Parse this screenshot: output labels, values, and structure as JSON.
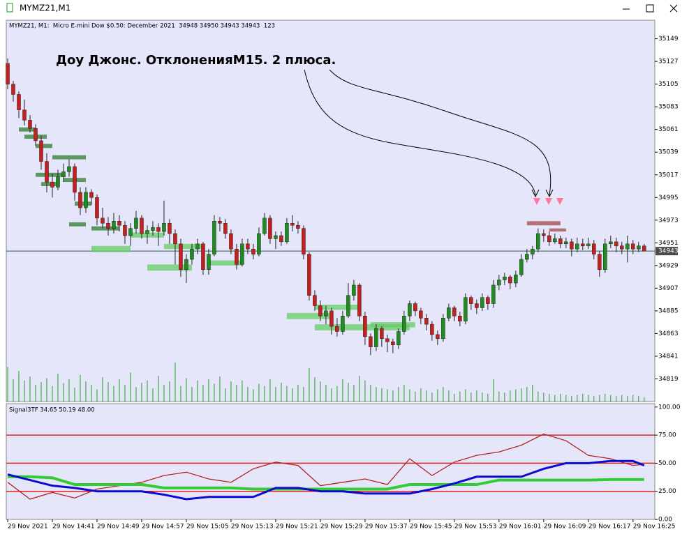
{
  "window_title": "MYMZ21,M1",
  "chart_data": [
    {
      "type": "candlestick",
      "header": "MYMZ21, M1:  Micro E-mini Dow $0.50: December 2021  34948 34950 34943 34943  123",
      "annotation": "Доу Джонс. ОтклоненияМ15. 2 плюса.",
      "up_color": "#1e8c1e",
      "down_color": "#c81e1e",
      "volume_color": "#1ea01e",
      "xlim": [
        -0.25,
        115.9
      ],
      "ylim": [
        34797,
        35167
      ],
      "yticks": [
        35149,
        35127,
        35105,
        35083,
        35061,
        35039,
        35017,
        34995,
        34973,
        34951,
        34929,
        34907,
        34885,
        34863,
        34841,
        34819
      ],
      "current_price": 34943,
      "candles": [
        [
          35125,
          35130,
          35100,
          35105
        ],
        [
          35105,
          35108,
          35088,
          35095
        ],
        [
          35095,
          35098,
          35072,
          35080
        ],
        [
          35080,
          35090,
          35065,
          35070
        ],
        [
          35070,
          35075,
          35058,
          35062
        ],
        [
          35062,
          35066,
          35045,
          35050
        ],
        [
          35050,
          35055,
          35022,
          35030
        ],
        [
          35030,
          35038,
          35000,
          35010
        ],
        [
          35010,
          35018,
          34995,
          35005
        ],
        [
          35005,
          35022,
          35002,
          35015
        ],
        [
          35015,
          35028,
          35010,
          35020
        ],
        [
          35020,
          35032,
          35015,
          35025
        ],
        [
          35025,
          35028,
          34992,
          35000
        ],
        [
          35000,
          35005,
          34978,
          34985
        ],
        [
          34985,
          35005,
          34980,
          35000
        ],
        [
          35000,
          35003,
          34988,
          34995
        ],
        [
          34995,
          34998,
          34968,
          34975
        ],
        [
          34975,
          34985,
          34965,
          34970
        ],
        [
          34970,
          34976,
          34958,
          34965
        ],
        [
          34965,
          34980,
          34960,
          34972
        ],
        [
          34972,
          34978,
          34962,
          34968
        ],
        [
          34968,
          34972,
          34950,
          34958
        ],
        [
          34958,
          34970,
          34948,
          34965
        ],
        [
          34965,
          34982,
          34960,
          34975
        ],
        [
          34975,
          34978,
          34955,
          34960
        ],
        [
          34960,
          34968,
          34950,
          34963
        ],
        [
          34963,
          34972,
          34958,
          34966
        ],
        [
          34966,
          34970,
          34948,
          34962
        ],
        [
          34962,
          34992,
          34958,
          34970
        ],
        [
          34970,
          34974,
          34950,
          34960
        ],
        [
          34960,
          34964,
          34930,
          34950
        ],
        [
          34950,
          34955,
          34918,
          34925
        ],
        [
          34925,
          34940,
          34912,
          34935
        ],
        [
          34935,
          34950,
          34930,
          34945
        ],
        [
          34945,
          34955,
          34940,
          34950
        ],
        [
          34950,
          34952,
          34920,
          34925
        ],
        [
          34925,
          34945,
          34920,
          34940
        ],
        [
          34940,
          34978,
          34938,
          34972
        ],
        [
          34972,
          34976,
          34962,
          34970
        ],
        [
          34970,
          34974,
          34955,
          34960
        ],
        [
          34960,
          34964,
          34940,
          34945
        ],
        [
          34945,
          34950,
          34925,
          34930
        ],
        [
          34930,
          34955,
          34928,
          34950
        ],
        [
          34950,
          34955,
          34940,
          34945
        ],
        [
          34945,
          34950,
          34935,
          34940
        ],
        [
          34940,
          34966,
          34938,
          34960
        ],
        [
          34960,
          34980,
          34958,
          34975
        ],
        [
          34975,
          34978,
          34950,
          34955
        ],
        [
          34955,
          34962,
          34945,
          34958
        ],
        [
          34958,
          34962,
          34948,
          34952
        ],
        [
          34952,
          34975,
          34950,
          34970
        ],
        [
          34970,
          34978,
          34962,
          34968
        ],
        [
          34968,
          34972,
          34960,
          34965
        ],
        [
          34965,
          34968,
          34935,
          34940
        ],
        [
          34940,
          34942,
          34895,
          34900
        ],
        [
          34900,
          34905,
          34885,
          34890
        ],
        [
          34890,
          34895,
          34875,
          34880
        ],
        [
          34880,
          34890,
          34872,
          34885
        ],
        [
          34885,
          34888,
          34862,
          34870
        ],
        [
          34870,
          34878,
          34860,
          34865
        ],
        [
          34865,
          34885,
          34862,
          34880
        ],
        [
          34880,
          34912,
          34878,
          34900
        ],
        [
          34900,
          34915,
          34895,
          34910
        ],
        [
          34910,
          34912,
          34875,
          34880
        ],
        [
          34880,
          34884,
          34852,
          34860
        ],
        [
          34860,
          34863,
          34842,
          34850
        ],
        [
          34850,
          34872,
          34846,
          34868
        ],
        [
          34868,
          34870,
          34850,
          34858
        ],
        [
          34858,
          34862,
          34845,
          34855
        ],
        [
          34855,
          34858,
          34844,
          34852
        ],
        [
          34852,
          34868,
          34848,
          34865
        ],
        [
          34865,
          34885,
          34862,
          34880
        ],
        [
          34880,
          34895,
          34875,
          34892
        ],
        [
          34892,
          34894,
          34880,
          34885
        ],
        [
          34885,
          34888,
          34872,
          34878
        ],
        [
          34878,
          34882,
          34866,
          34872
        ],
        [
          34872,
          34875,
          34856,
          34862
        ],
        [
          34862,
          34866,
          34852,
          34858
        ],
        [
          34858,
          34882,
          34855,
          34878
        ],
        [
          34878,
          34892,
          34875,
          34888
        ],
        [
          34888,
          34890,
          34875,
          34880
        ],
        [
          34880,
          34884,
          34870,
          34875
        ],
        [
          34875,
          34902,
          34872,
          34898
        ],
        [
          34898,
          34900,
          34886,
          34892
        ],
        [
          34892,
          34896,
          34882,
          34888
        ],
        [
          34888,
          34902,
          34885,
          34898
        ],
        [
          34898,
          34900,
          34886,
          34892
        ],
        [
          34892,
          34915,
          34888,
          34910
        ],
        [
          34910,
          34920,
          34905,
          34915
        ],
        [
          34915,
          34922,
          34910,
          34918
        ],
        [
          34918,
          34920,
          34906,
          34912
        ],
        [
          34912,
          34924,
          34908,
          34920
        ],
        [
          34920,
          34940,
          34918,
          34935
        ],
        [
          34935,
          34945,
          34932,
          34940
        ],
        [
          34940,
          34948,
          34935,
          34945
        ],
        [
          34945,
          34965,
          34942,
          34960
        ],
        [
          34960,
          34964,
          34952,
          34958
        ],
        [
          34958,
          34962,
          34948,
          34952
        ],
        [
          34952,
          34960,
          34950,
          34955
        ],
        [
          34955,
          34958,
          34946,
          34950
        ],
        [
          34950,
          34956,
          34946,
          34952
        ],
        [
          34952,
          34955,
          34938,
          34945
        ],
        [
          34945,
          34956,
          34942,
          34950
        ],
        [
          34950,
          34955,
          34944,
          34948
        ],
        [
          34948,
          34956,
          34945,
          34950
        ],
        [
          34950,
          34954,
          34935,
          34940
        ],
        [
          34940,
          34943,
          34918,
          34925
        ],
        [
          34925,
          34955,
          34922,
          34950
        ],
        [
          34950,
          34958,
          34946,
          34952
        ],
        [
          34952,
          34956,
          34942,
          34948
        ],
        [
          34948,
          34952,
          34940,
          34945
        ],
        [
          34945,
          34958,
          34932,
          34950
        ],
        [
          34950,
          34954,
          34940,
          34945
        ],
        [
          34945,
          34952,
          34942,
          34948
        ],
        [
          34948,
          34950,
          34943,
          34943
        ]
      ],
      "volume_lim": [
        0,
        100
      ],
      "volumes": [
        62,
        40,
        55,
        38,
        45,
        30,
        35,
        42,
        28,
        50,
        33,
        40,
        25,
        48,
        36,
        30,
        22,
        44,
        35,
        28,
        40,
        30,
        52,
        26,
        34,
        38,
        24,
        46,
        30,
        36,
        70,
        28,
        42,
        26,
        38,
        30,
        40,
        32,
        45,
        24,
        36,
        30,
        38,
        26,
        22,
        32,
        28,
        40,
        26,
        34,
        28,
        24,
        30,
        26,
        60,
        44,
        36,
        30,
        24,
        28,
        40,
        34,
        30,
        46,
        38,
        30,
        26,
        24,
        22,
        20,
        26,
        30,
        22,
        18,
        24,
        20,
        16,
        22,
        26,
        20,
        14,
        18,
        22,
        16,
        20,
        16,
        14,
        40,
        18,
        16,
        20,
        22,
        24,
        26,
        30,
        18,
        16,
        14,
        12,
        14,
        12,
        10,
        12,
        14,
        12,
        10,
        12,
        14,
        12,
        10,
        12,
        10,
        12,
        10,
        8
      ],
      "zones": [
        {
          "from": 2,
          "to": 5,
          "low": 35059,
          "high": 35063,
          "color": "#2e7d2e"
        },
        {
          "from": 3,
          "to": 7,
          "low": 35052,
          "high": 35056,
          "color": "#2e7d2e"
        },
        {
          "from": 5,
          "to": 8,
          "low": 35043,
          "high": 35047,
          "color": "#2e7d2e"
        },
        {
          "from": 8,
          "to": 14,
          "low": 35032,
          "high": 35036,
          "color": "#2e7d2e"
        },
        {
          "from": 5,
          "to": 10,
          "low": 35015,
          "high": 35019,
          "color": "#2e7d2e"
        },
        {
          "from": 6,
          "to": 9,
          "low": 35006,
          "high": 35010,
          "color": "#2e7d2e"
        },
        {
          "from": 10,
          "to": 14,
          "low": 35010,
          "high": 35014,
          "color": "#2e7d2e"
        },
        {
          "from": 12,
          "to": 15,
          "low": 34987,
          "high": 34991,
          "color": "#2e7d2e"
        },
        {
          "from": 11,
          "to": 14,
          "low": 34967,
          "high": 34971,
          "color": "#2e7d2e"
        },
        {
          "from": 15,
          "to": 20,
          "low": 34963,
          "high": 34967,
          "color": "#2e7d2e"
        },
        {
          "from": 15,
          "to": 22,
          "low": 34942,
          "high": 34948,
          "color": "#66cc66"
        },
        {
          "from": 22,
          "to": 28,
          "low": 34956,
          "high": 34961,
          "color": "#66cc66"
        },
        {
          "from": 28,
          "to": 35,
          "low": 34945,
          "high": 34950,
          "color": "#66cc66"
        },
        {
          "from": 25,
          "to": 33,
          "low": 34924,
          "high": 34930,
          "color": "#66cc66"
        },
        {
          "from": 36,
          "to": 42,
          "low": 34929,
          "high": 34934,
          "color": "#66cc66"
        },
        {
          "from": 50,
          "to": 58,
          "low": 34877,
          "high": 34883,
          "color": "#66cc66"
        },
        {
          "from": 55,
          "to": 63,
          "low": 34886,
          "high": 34891,
          "color": "#66cc66"
        },
        {
          "from": 55,
          "to": 72,
          "low": 34866,
          "high": 34872,
          "color": "#66cc66"
        },
        {
          "from": 65,
          "to": 73,
          "low": 34869,
          "high": 34874,
          "color": "#66cc66"
        },
        {
          "from": 93,
          "to": 99,
          "low": 34968,
          "high": 34972,
          "color": "#a04848"
        },
        {
          "from": 97,
          "to": 100,
          "low": 34962,
          "high": 34965,
          "color": "#a04848"
        }
      ]
    },
    {
      "type": "line",
      "title": "Signal3TF 34.65 50.19 48.00",
      "xlim": [
        -0.25,
        115.9
      ],
      "ylim": [
        0,
        103
      ],
      "yticks": [
        {
          "value": 100,
          "label": "100.00"
        },
        {
          "value": 75,
          "label": "75.00"
        },
        {
          "value": 50,
          "label": "50.00"
        },
        {
          "value": 25,
          "label": "25.00"
        },
        {
          "value": 0,
          "label": "0.00"
        }
      ],
      "levels": [
        75,
        50,
        25
      ],
      "level_color": "#e02020",
      "xticks": [
        {
          "value": 0,
          "label": "29 Nov 2021"
        },
        {
          "value": 8,
          "label": "29 Nov 14:41"
        },
        {
          "value": 16,
          "label": "29 Nov 14:49"
        },
        {
          "value": 24,
          "label": "29 Nov 14:57"
        },
        {
          "value": 32,
          "label": "29 Nov 15:05"
        },
        {
          "value": 40,
          "label": "29 Nov 15:13"
        },
        {
          "value": 48,
          "label": "29 Nov 15:21"
        },
        {
          "value": 56,
          "label": "29 Nov 15:29"
        },
        {
          "value": 64,
          "label": "29 Nov 15:37"
        },
        {
          "value": 72,
          "label": "29 Nov 15:45"
        },
        {
          "value": 80,
          "label": "29 Nov 15:53"
        },
        {
          "value": 88,
          "label": "29 Nov 16:01"
        },
        {
          "value": 96,
          "label": "29 Nov 16:09"
        },
        {
          "value": 104,
          "label": "29 Nov 16:17"
        },
        {
          "value": 112,
          "label": "29 Nov 16:25"
        }
      ],
      "x": [
        0,
        4,
        8,
        12,
        16,
        20,
        24,
        28,
        32,
        36,
        40,
        44,
        48,
        52,
        56,
        60,
        64,
        68,
        72,
        76,
        80,
        84,
        88,
        92,
        96,
        100,
        104,
        108,
        112,
        114
      ],
      "series": [
        {
          "color": "#b22222",
          "width": 1.3,
          "values": [
            33,
            18,
            24,
            19,
            27,
            30,
            33,
            39,
            42,
            36,
            33,
            45,
            51,
            48,
            30,
            33,
            36,
            31,
            54,
            39,
            51,
            57,
            60,
            66,
            76,
            70,
            57,
            54,
            48,
            49
          ]
        },
        {
          "color": "#32cd32",
          "width": 4,
          "values": [
            38,
            38,
            37,
            31,
            31,
            31,
            31,
            28,
            28,
            28,
            28,
            27,
            27,
            27,
            27,
            27,
            27,
            27,
            31,
            31,
            31,
            31,
            35,
            35,
            35,
            35,
            35,
            35.5,
            35.5,
            35.5
          ]
        },
        {
          "color": "#0a0ad0",
          "width": 3,
          "values": [
            40,
            35,
            30,
            28,
            25,
            25,
            25,
            22,
            18,
            20,
            20,
            20,
            28,
            28,
            25,
            25,
            23,
            23,
            23,
            27,
            32,
            38,
            38,
            38,
            45,
            50,
            50,
            52,
            52,
            48
          ]
        }
      ]
    }
  ]
}
